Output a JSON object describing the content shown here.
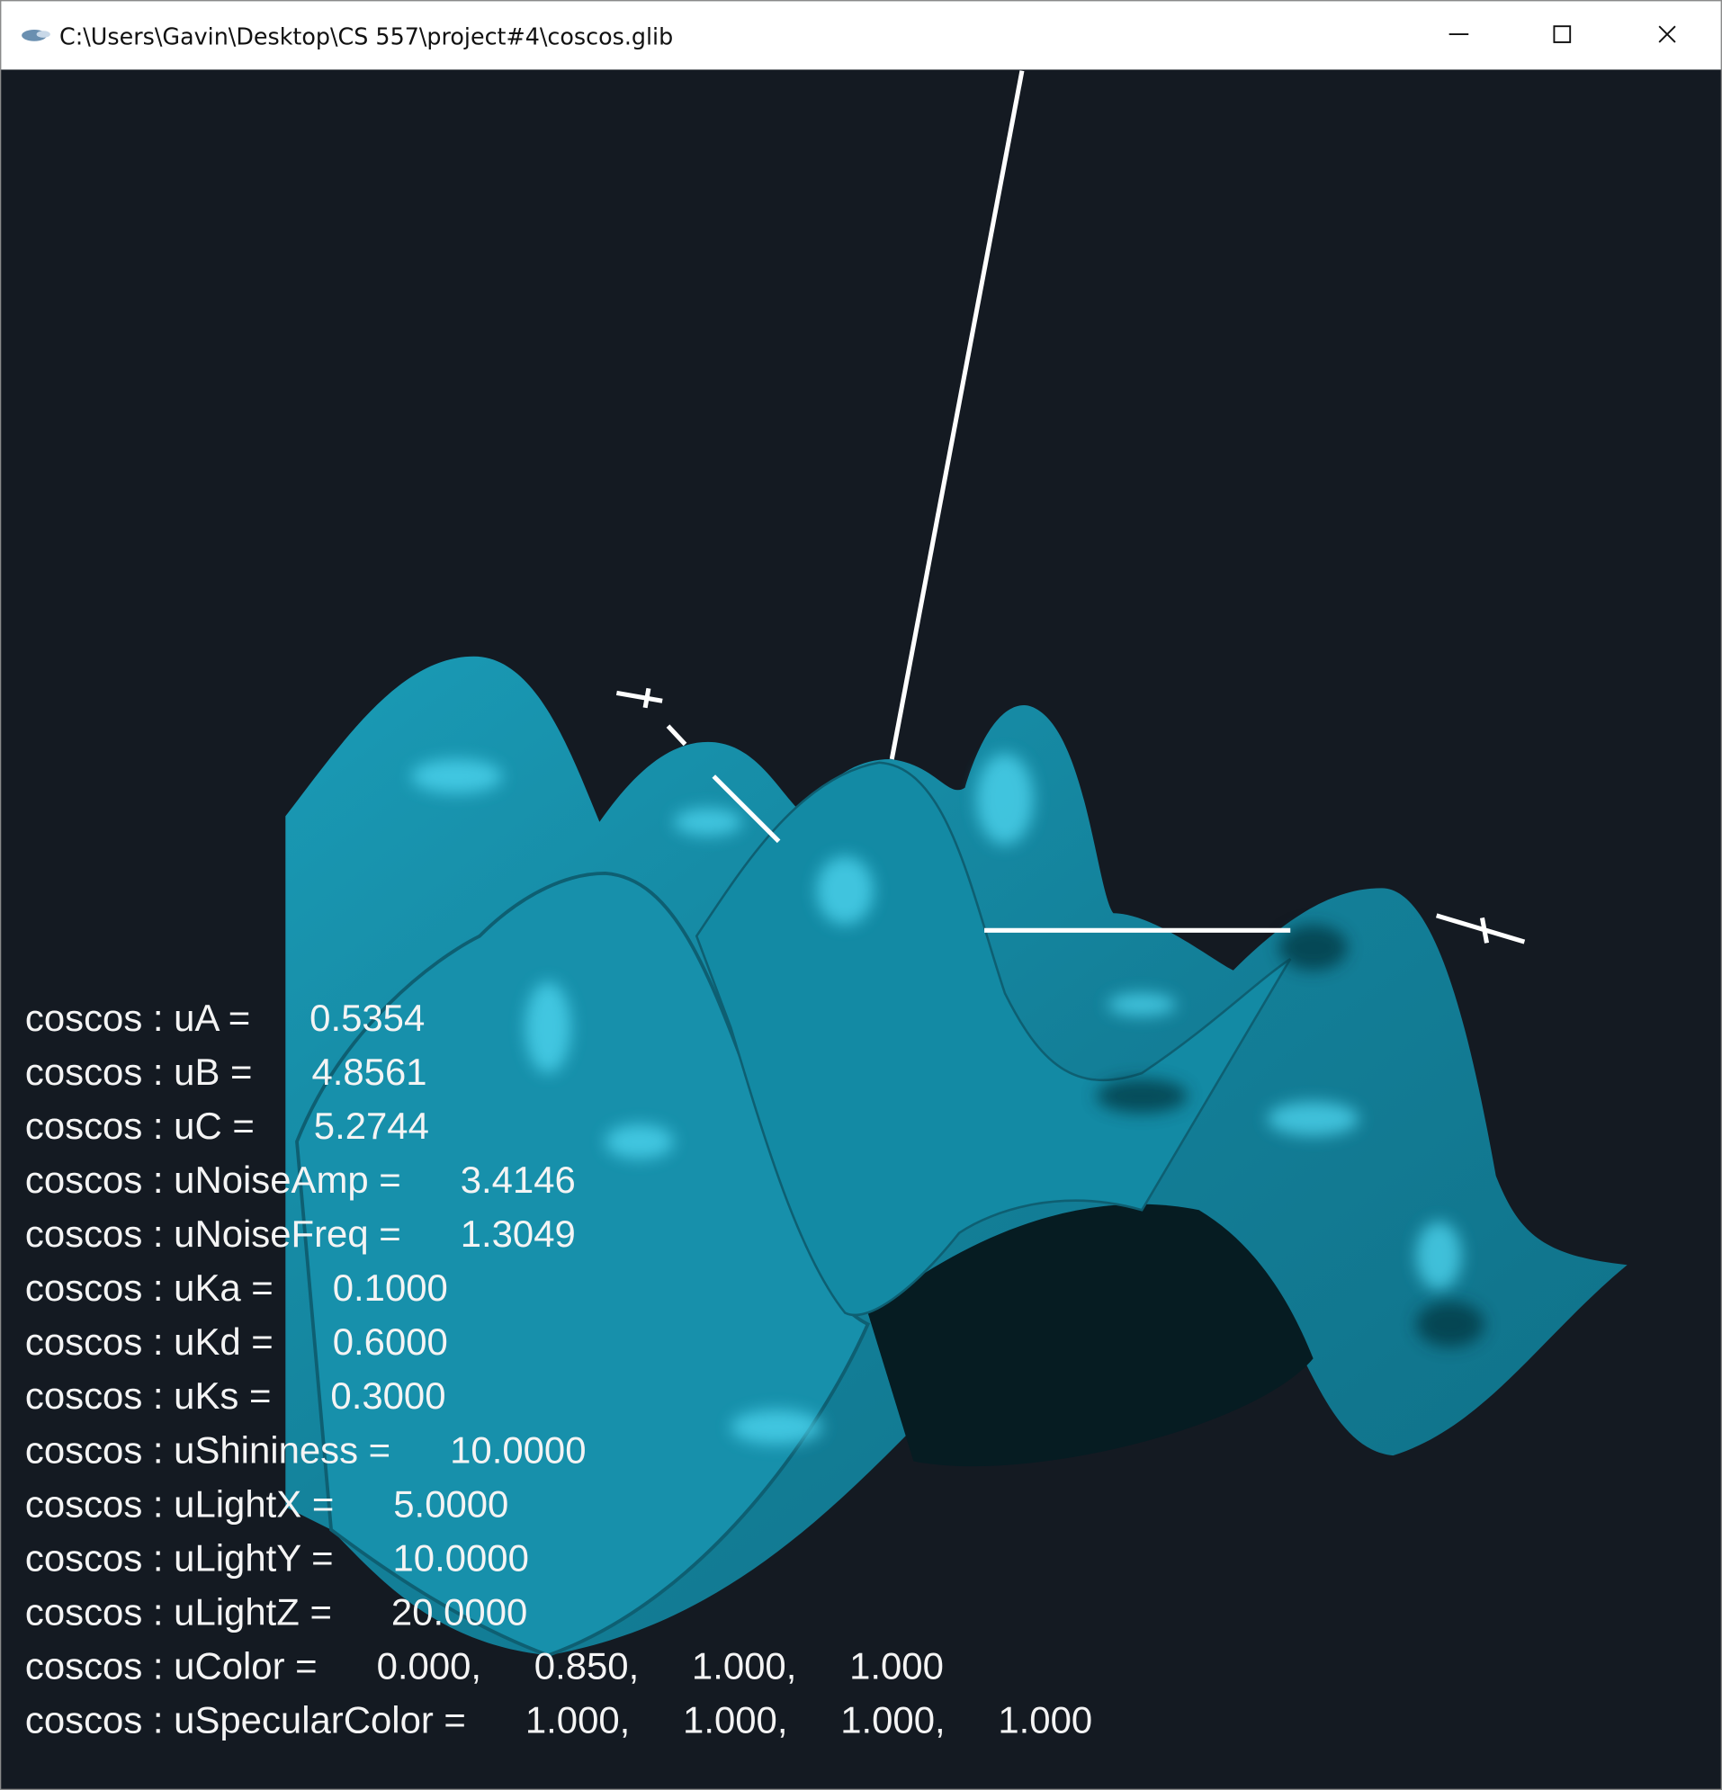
{
  "window": {
    "title": "C:\\Users\\Gavin\\Desktop\\CS 557\\project#4\\coscos.glib"
  },
  "uniforms": [
    {
      "label": "coscos : uA =",
      "values": [
        "0.5354"
      ]
    },
    {
      "label": "coscos : uB =",
      "values": [
        "4.8561"
      ]
    },
    {
      "label": "coscos : uC =",
      "values": [
        "5.2744"
      ]
    },
    {
      "label": "coscos : uNoiseAmp =",
      "values": [
        "3.4146"
      ]
    },
    {
      "label": "coscos : uNoiseFreq =",
      "values": [
        "1.3049"
      ]
    },
    {
      "label": "coscos : uKa =",
      "values": [
        "0.1000"
      ]
    },
    {
      "label": "coscos : uKd =",
      "values": [
        "0.6000"
      ]
    },
    {
      "label": "coscos : uKs =",
      "values": [
        "0.3000"
      ]
    },
    {
      "label": "coscos : uShininess =",
      "values": [
        "10.0000"
      ]
    },
    {
      "label": "coscos : uLightX =",
      "values": [
        "5.0000"
      ]
    },
    {
      "label": "coscos : uLightY =",
      "values": [
        "10.0000"
      ]
    },
    {
      "label": "coscos : uLightZ =",
      "values": [
        "20.0000"
      ]
    },
    {
      "label": "coscos : uColor =",
      "values": [
        "0.000,",
        "0.850,",
        "1.000,",
        "1.000"
      ]
    },
    {
      "label": "coscos : uSpecularColor =",
      "values": [
        "1.000,",
        "1.000,",
        "1.000,",
        "1.000"
      ]
    }
  ]
}
